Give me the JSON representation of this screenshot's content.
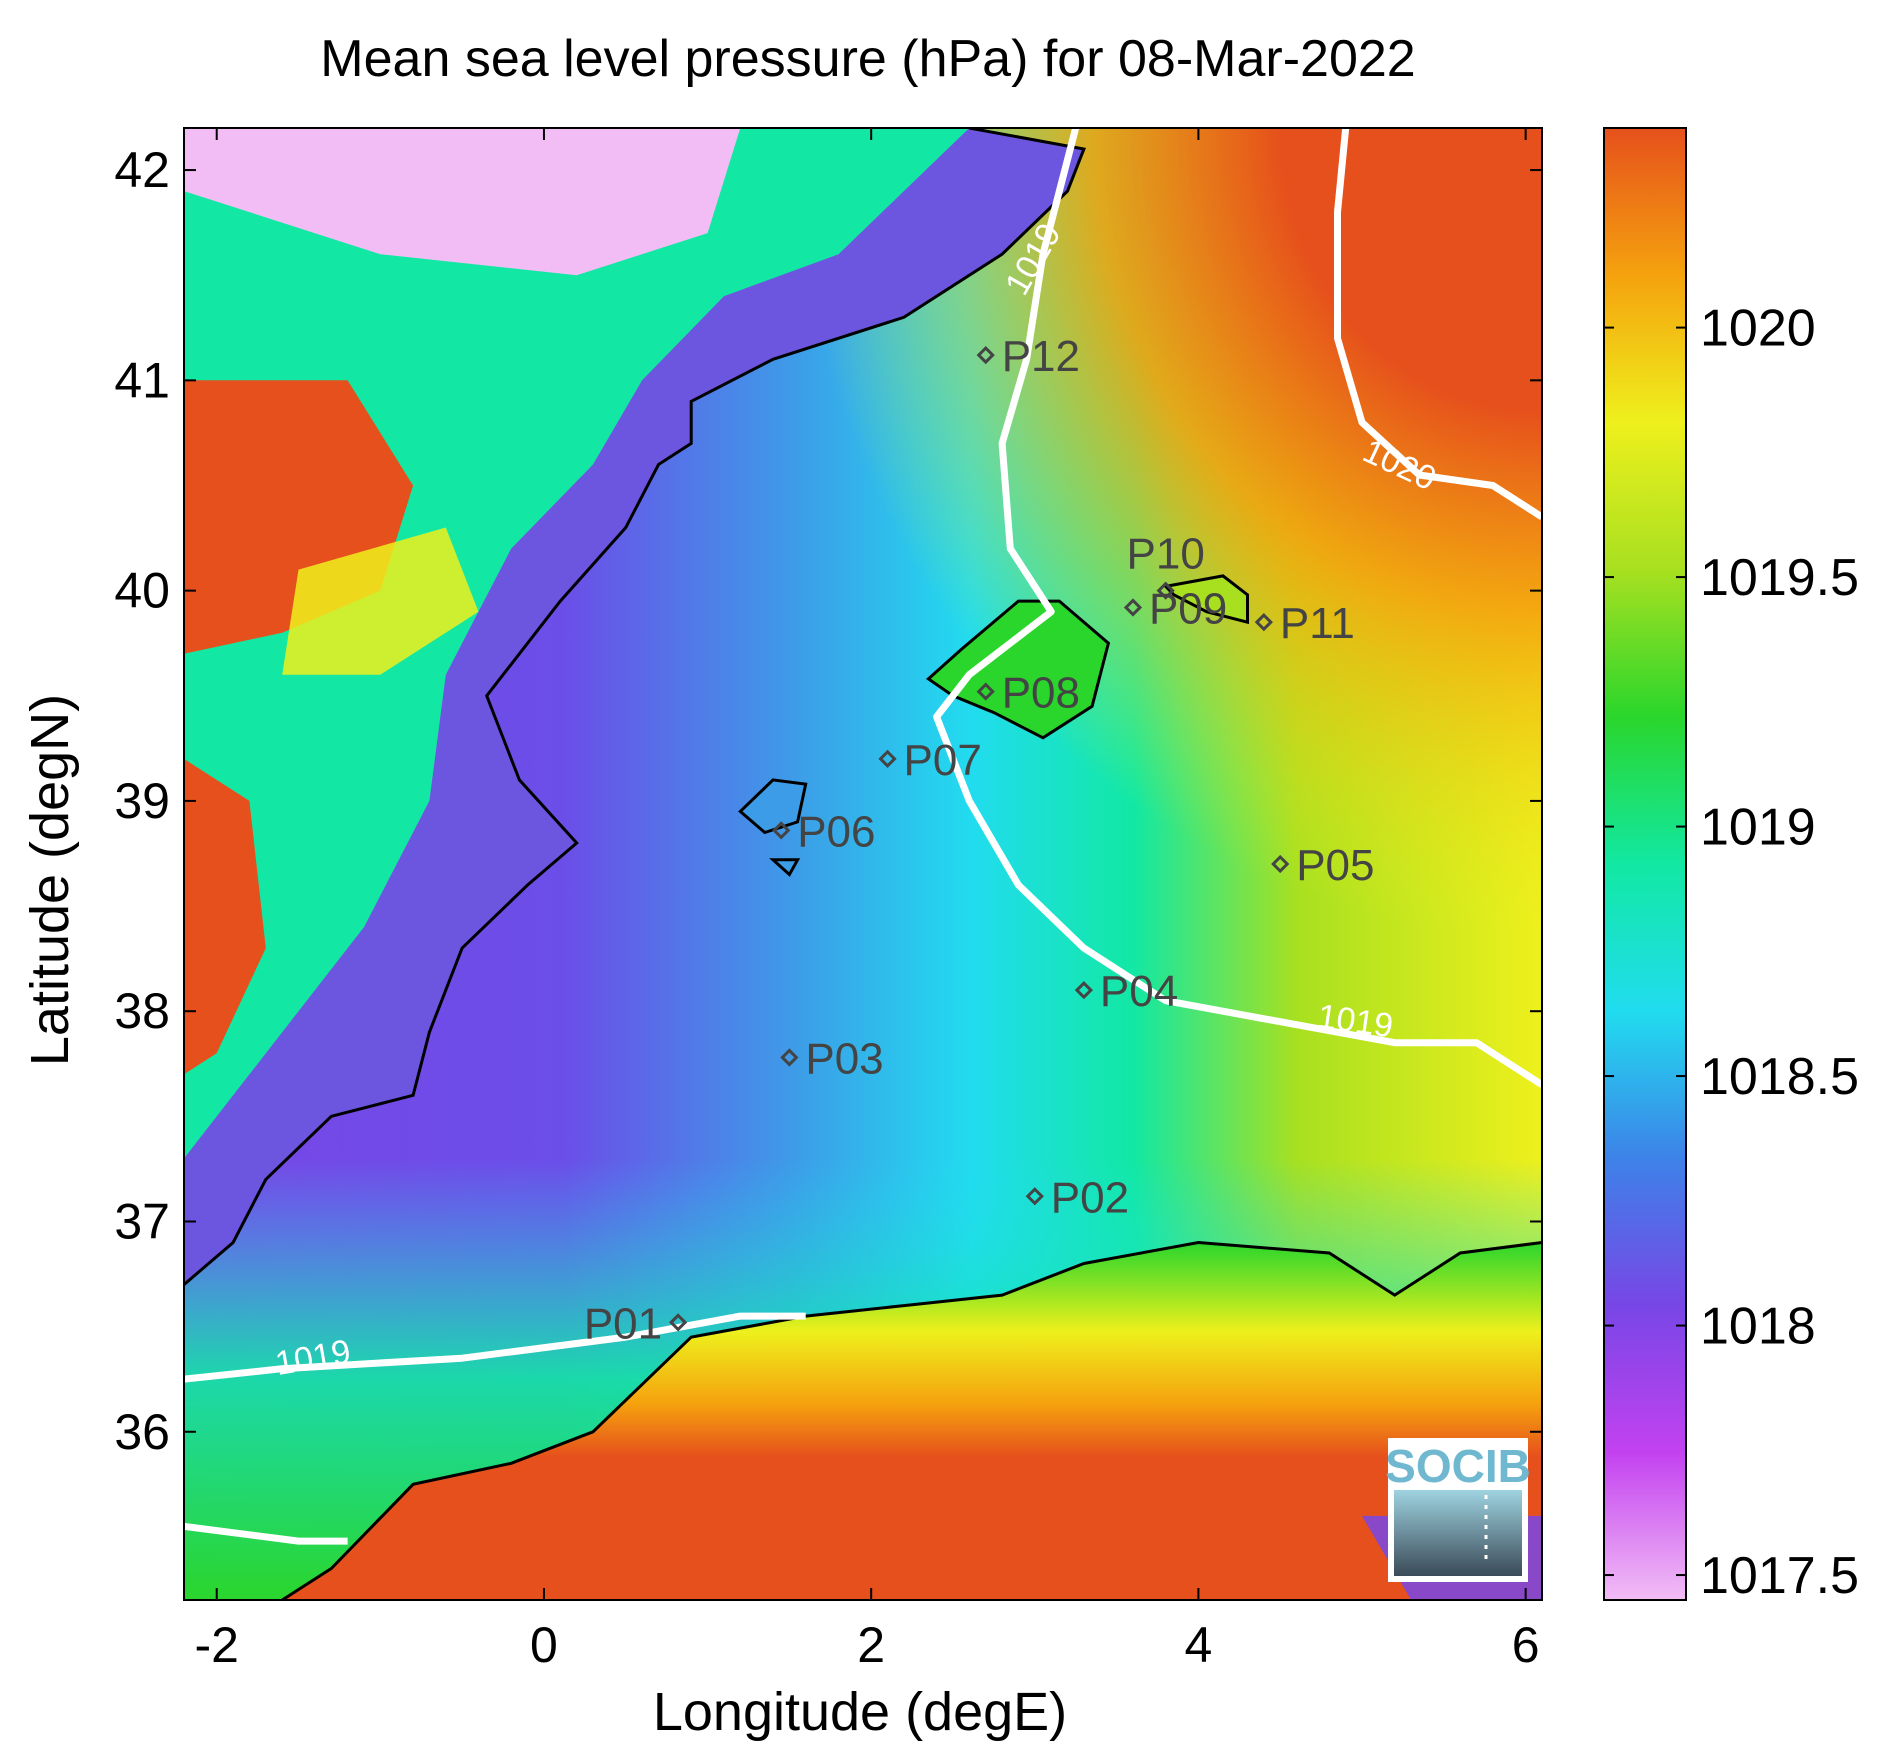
{
  "chart_data": {
    "type": "heatmap",
    "title": "Mean sea level pressure (hPa) for 08-Mar-2022",
    "xlabel": "Longitude (degE)",
    "ylabel": "Latitude (degN)",
    "xlim": [
      -2.2,
      6.1
    ],
    "ylim": [
      35.2,
      42.2
    ],
    "x_ticks": [
      -2,
      0,
      2,
      4,
      6
    ],
    "x_tick_labels": [
      "-2",
      "0",
      "2",
      "4",
      "6"
    ],
    "y_ticks": [
      36,
      37,
      38,
      39,
      40,
      41,
      42
    ],
    "y_tick_labels": [
      "36",
      "37",
      "38",
      "39",
      "40",
      "41",
      "42"
    ],
    "colorbar": {
      "min": 1017.45,
      "max": 1020.4,
      "ticks": [
        1017.5,
        1018,
        1018.5,
        1019,
        1019.5,
        1020
      ],
      "tick_labels": [
        "1017.5",
        "1018",
        "1018.5",
        "1019",
        "1019.5",
        "1020"
      ],
      "colormap": [
        "#f2bdf5",
        "#c342f0",
        "#7846e6",
        "#3d82e8",
        "#21dcef",
        "#12e8a3",
        "#2ad62c",
        "#a8e020",
        "#eef01c",
        "#f5a20e",
        "#e6501c"
      ]
    },
    "contour_labels": [
      {
        "text": "1019",
        "lon": 3.05,
        "lat": 41.55
      },
      {
        "text": "1020",
        "lon": 5.2,
        "lat": 40.55
      },
      {
        "text": "1019",
        "lon": 4.95,
        "lat": 37.9
      },
      {
        "text": "1019",
        "lon": -1.4,
        "lat": 36.3
      }
    ],
    "stations": [
      {
        "name": "P01",
        "lon": 0.82,
        "lat": 36.52
      },
      {
        "name": "P02",
        "lon": 3.0,
        "lat": 37.12
      },
      {
        "name": "P03",
        "lon": 1.5,
        "lat": 37.78
      },
      {
        "name": "P04",
        "lon": 3.3,
        "lat": 38.1
      },
      {
        "name": "P05",
        "lon": 4.5,
        "lat": 38.7
      },
      {
        "name": "P06",
        "lon": 1.45,
        "lat": 38.86
      },
      {
        "name": "P07",
        "lon": 2.1,
        "lat": 39.2
      },
      {
        "name": "P08",
        "lon": 2.7,
        "lat": 39.52
      },
      {
        "name": "P09",
        "lon": 3.6,
        "lat": 39.92
      },
      {
        "name": "P10",
        "lon": 3.8,
        "lat": 40.0
      },
      {
        "name": "P11",
        "lon": 4.4,
        "lat": 39.85
      },
      {
        "name": "P12",
        "lon": 2.7,
        "lat": 41.12
      }
    ],
    "grid": false,
    "logo_text": "SOCIB"
  }
}
